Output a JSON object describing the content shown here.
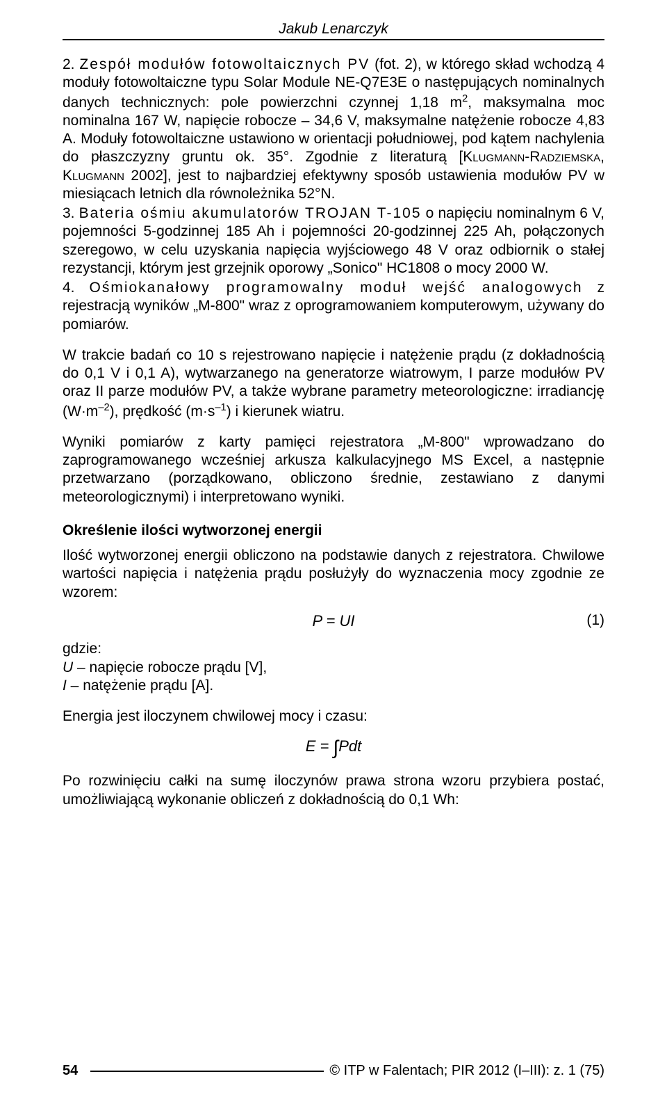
{
  "header": {
    "author": "Jakub Lenarczyk"
  },
  "items": {
    "i2": {
      "num": "2.",
      "lead": "Zespół modułów fotowoltaicznych PV",
      "rest_a": " (fot. 2), w którego skład wchodzą 4 moduły fotowoltaiczne typu Solar Module NE-Q7E3E o następujących nominalnych danych technicznych: pole powierzchni czynnej 1,18 m",
      "sup1": "2",
      "rest_b": ", maksymalna moc nominalna 167 W, napięcie robocze – 34,6 V, maksymalne natężenie robocze 4,83 A. Moduły fotowoltaiczne ustawiono w orientacji południowej, pod kątem nachylenia do płaszczyzny gruntu ok. 35°. Zgodnie z literaturą [",
      "ref1": "Klugmann-Radziemska, Klugmann",
      "rest_c": " 2002], jest to najbardziej efektywny sposób ustawienia modułów PV w miesiącach letnich dla równoleżnika 52°N."
    },
    "i3": {
      "num": "3.",
      "lead": "Bateria ośmiu akumulatorów TROJAN T-105",
      "rest": " o napięciu nominalnym 6 V, pojemności 5-godzinnej 185 Ah i pojemności 20-godzinnej 225 Ah, połączonych szeregowo, w celu uzyskania napięcia wyjściowego 48 V oraz odbiornik o stałej rezystancji, którym jest grzejnik oporowy „Sonico\" HC1808 o mocy 2000 W."
    },
    "i4": {
      "num": "4.",
      "lead": "Ośmiokanałowy programowalny moduł wejść analogowych",
      "rest": " z rejestracją wyników „M-800\" wraz z oprogramowaniem komputerowym, używany do pomiarów."
    }
  },
  "paras": {
    "p1_a": "W trakcie badań co 10 s rejestrowano napięcie i natężenie prądu (z dokładnością do 0,1 V i 0,1 A), wytwarzanego na generatorze wiatrowym, I parze modułów PV oraz II parze modułów PV, a także wybrane parametry meteorologiczne: irradiancję (W·m",
    "p1_sup1": "–2",
    "p1_b": "), prędkość (m·s",
    "p1_sup2": "–1",
    "p1_c": ") i kierunek wiatru.",
    "p2": "Wyniki pomiarów z karty pamięci rejestratora „M-800\" wprowadzano do zaprogramowanego wcześniej arkusza kalkulacyjnego MS Excel, a następnie przetwarzano (porządkowano, obliczono średnie, zestawiano z danymi meteorologicznymi) i interpretowano wyniki."
  },
  "section": {
    "title": "Określenie ilości wytworzonej energii",
    "p3": "Ilość wytworzonej energii obliczono na podstawie danych z rejestratora. Chwilowe wartości napięcia i natężenia prądu posłużyły do wyznaczenia mocy zgodnie ze wzorem:"
  },
  "eq1": {
    "formula": "P = UI",
    "num": "(1)"
  },
  "where": {
    "label": "gdzie:",
    "u_sym": "U",
    "u_txt": " – napięcie robocze prądu [V],",
    "i_sym": "I",
    "i_txt": " – natężenie prądu [A]."
  },
  "p4": "Energia jest iloczynem chwilowej mocy i czasu:",
  "eq2": {
    "lhs": "E = ",
    "int": "∫",
    "rhs": "Pdt"
  },
  "p5": "Po rozwinięciu całki na sumę iloczynów prawa strona wzoru przybiera postać, umożliwiającą wykonanie obliczeń z dokładnością do 0,1 Wh:",
  "footer": {
    "page": "54",
    "ref": "© ITP w Falentach; PIR 2012 (I–III): z. 1 (75)"
  }
}
